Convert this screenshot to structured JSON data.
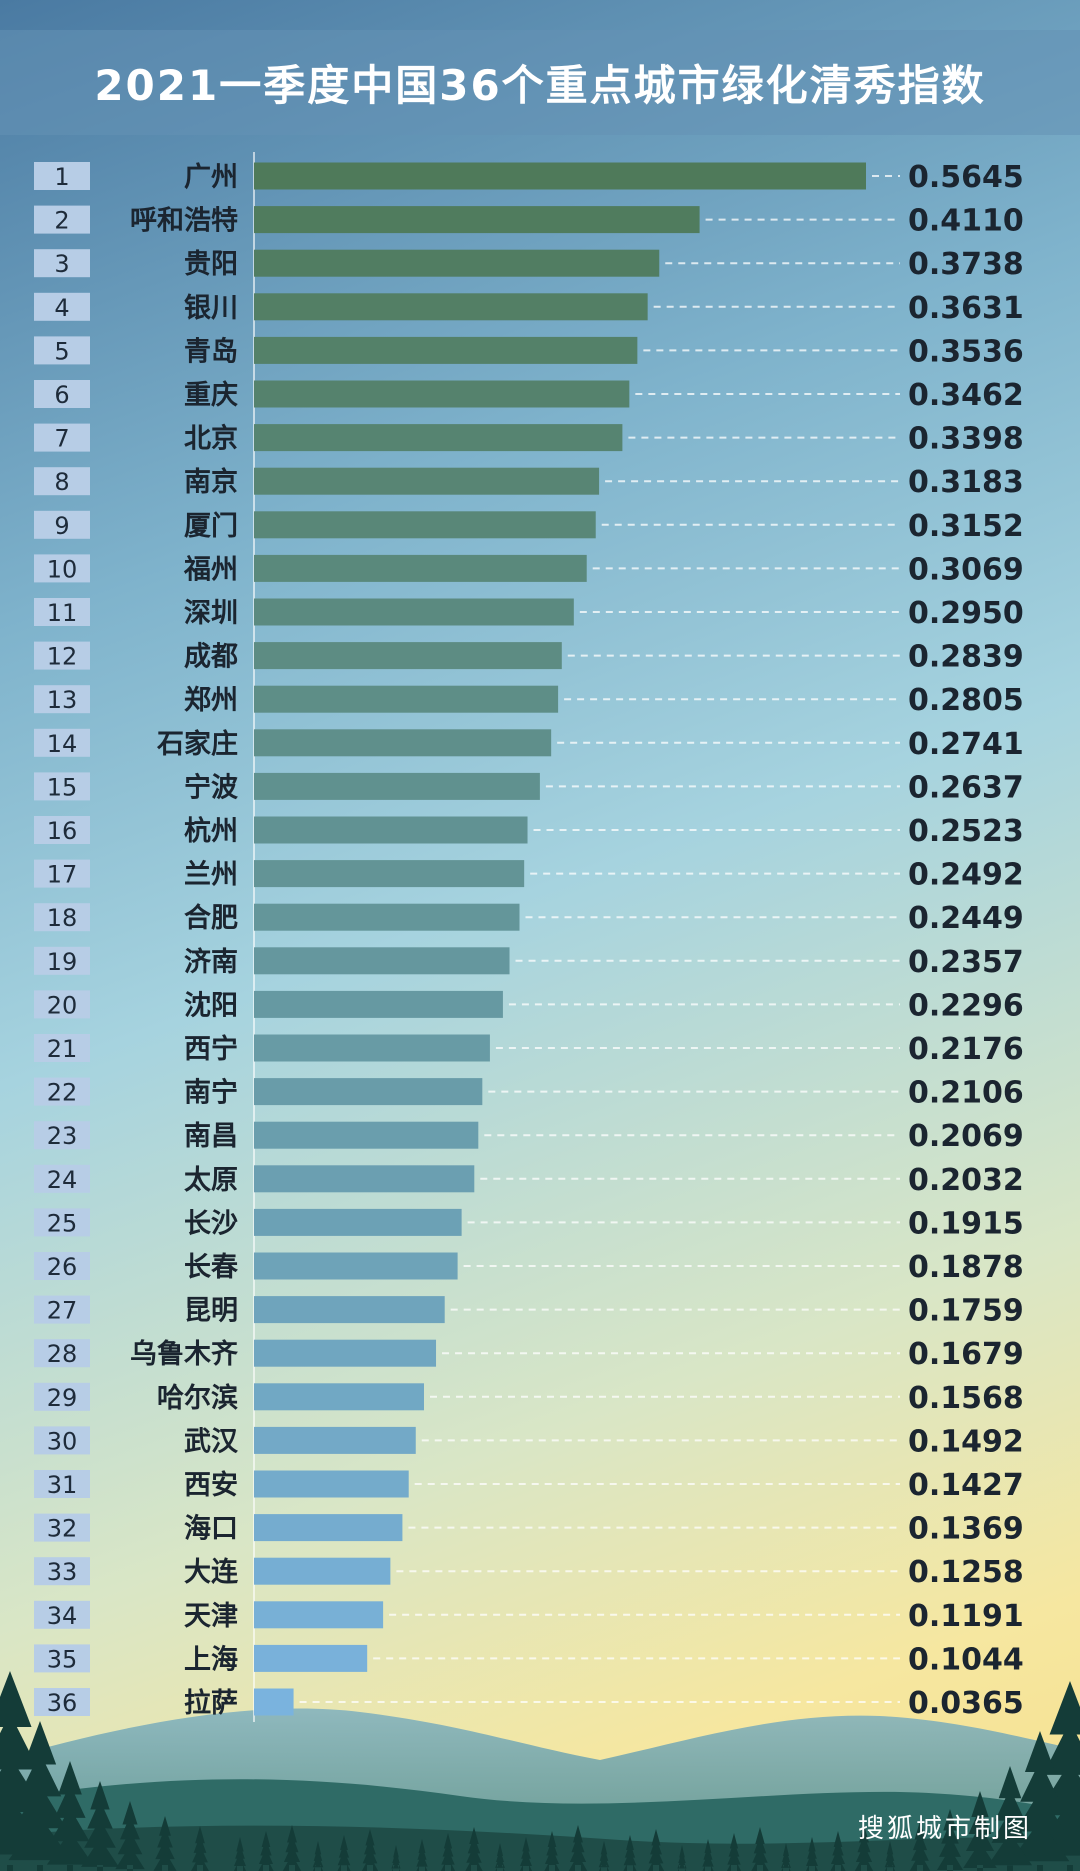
{
  "chart_data": {
    "type": "bar",
    "orientation": "horizontal",
    "title": "2021一季度中国36个重点城市绿化清秀指数",
    "xlim": [
      0,
      0.5645
    ],
    "ranks": [
      "1",
      "2",
      "3",
      "4",
      "5",
      "6",
      "7",
      "8",
      "9",
      "10",
      "11",
      "12",
      "13",
      "14",
      "15",
      "16",
      "17",
      "18",
      "19",
      "20",
      "21",
      "22",
      "23",
      "24",
      "25",
      "26",
      "27",
      "28",
      "29",
      "30",
      "31",
      "32",
      "33",
      "34",
      "35",
      "36"
    ],
    "categories": [
      "广州",
      "呼和浩特",
      "贵阳",
      "银川",
      "青岛",
      "重庆",
      "北京",
      "南京",
      "厦门",
      "福州",
      "深圳",
      "成都",
      "郑州",
      "石家庄",
      "宁波",
      "杭州",
      "兰州",
      "合肥",
      "济南",
      "沈阳",
      "西宁",
      "南宁",
      "南昌",
      "太原",
      "长沙",
      "长春",
      "昆明",
      "乌鲁木齐",
      "哈尔滨",
      "武汉",
      "西安",
      "海口",
      "大连",
      "天津",
      "上海",
      "拉萨"
    ],
    "values": [
      0.5645,
      0.411,
      0.3738,
      0.3631,
      0.3536,
      0.3462,
      0.3398,
      0.3183,
      0.3152,
      0.3069,
      0.295,
      0.2839,
      0.2805,
      0.2741,
      0.2637,
      0.2523,
      0.2492,
      0.2449,
      0.2357,
      0.2296,
      0.2176,
      0.2106,
      0.2069,
      0.2032,
      0.1915,
      0.1878,
      0.1759,
      0.1679,
      0.1568,
      0.1492,
      0.1427,
      0.1369,
      0.1258,
      0.1191,
      0.1044,
      0.0365
    ],
    "value_labels": [
      "0.5645",
      "0.4110",
      "0.3738",
      "0.3631",
      "0.3536",
      "0.3462",
      "0.3398",
      "0.3183",
      "0.3152",
      "0.3069",
      "0.2950",
      "0.2839",
      "0.2805",
      "0.2741",
      "0.2637",
      "0.2523",
      "0.2492",
      "0.2449",
      "0.2357",
      "0.2296",
      "0.2176",
      "0.2106",
      "0.2069",
      "0.2032",
      "0.1915",
      "0.1878",
      "0.1759",
      "0.1679",
      "0.1568",
      "0.1492",
      "0.1427",
      "0.1369",
      "0.1258",
      "0.1191",
      "0.1044",
      "0.0365"
    ],
    "bar_color_top": "#4f7a5a",
    "bar_color_bottom": "#7ab3de",
    "rank_box_color": "#b7cde6",
    "grid": false
  },
  "credit": "搜狐城市制图"
}
